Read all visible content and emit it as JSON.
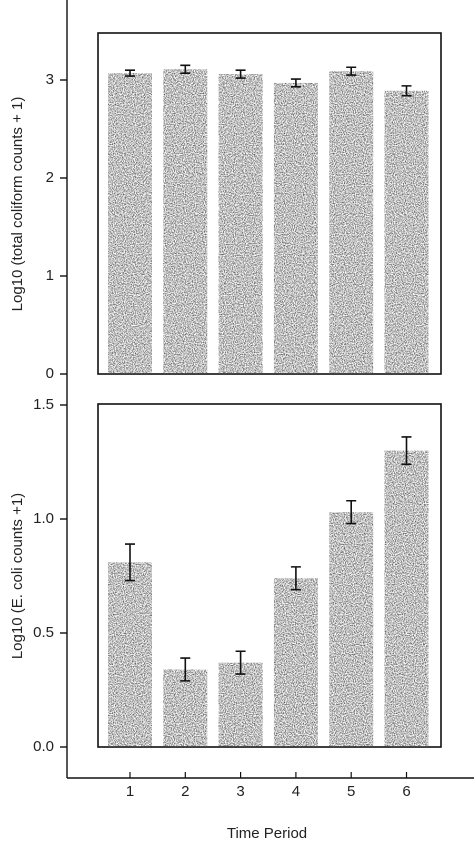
{
  "chart_data": [
    {
      "type": "bar",
      "ylabel": "Log10 (total coliform counts + 1)",
      "values": [
        3.07,
        3.11,
        3.06,
        2.97,
        3.09,
        2.89
      ],
      "errors": [
        0.03,
        0.04,
        0.04,
        0.04,
        0.04,
        0.05
      ],
      "color": "#4d4d4d",
      "ylim": [
        0,
        3.5
      ],
      "yticks": [
        0,
        1,
        2,
        3
      ]
    },
    {
      "type": "bar",
      "ylabel": "Log10 (E. coli counts +1)",
      "xlabel": "Time Period",
      "categories": [
        "1",
        "2",
        "3",
        "4",
        "5",
        "6"
      ],
      "values": [
        0.81,
        0.34,
        0.37,
        0.74,
        1.03,
        1.3
      ],
      "errors": [
        0.08,
        0.05,
        0.05,
        0.05,
        0.05,
        0.06
      ],
      "color": "#4d4d4d",
      "ylim": [
        0,
        1.5
      ],
      "yticks": [
        {
          "value": 0,
          "label": "0.0"
        },
        {
          "value": 0.5,
          "label": "0.5"
        },
        {
          "value": 1,
          "label": "1.0"
        },
        {
          "value": 1.5,
          "label": "1.5"
        }
      ]
    }
  ]
}
